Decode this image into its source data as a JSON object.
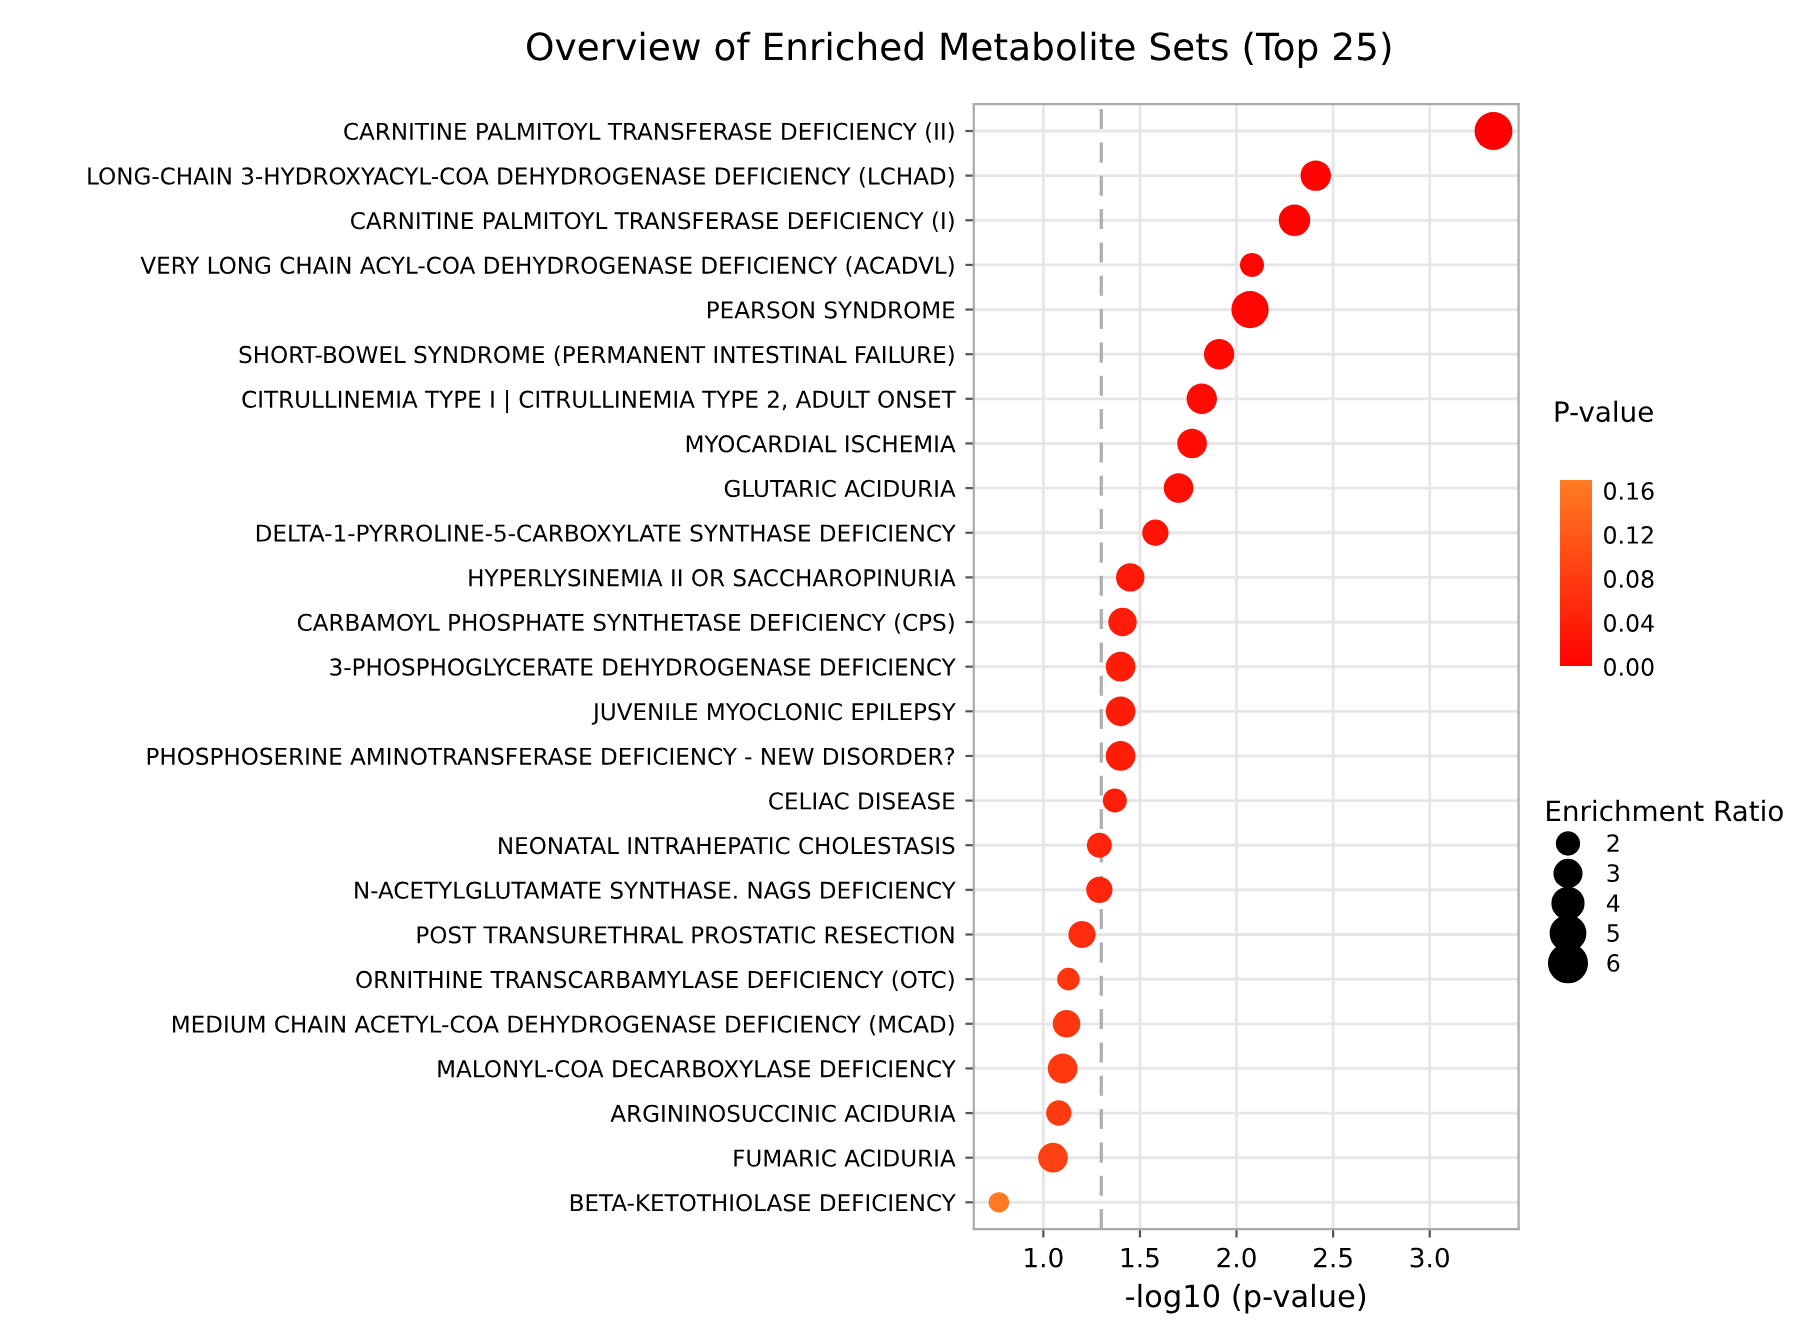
{
  "chart_data": {
    "type": "bubble",
    "title": "Overview of Enriched Metabolite Sets (Top 25)",
    "xlabel": "-log10 (p-value)",
    "clabel": "P-value",
    "legend_title": "Enrichment Ratio",
    "categories": [
      "CARNITINE PALMITOYL TRANSFERASE DEFICIENCY (II)",
      "LONG-CHAIN 3-HYDROXYACYL-COA DEHYDROGENASE DEFICIENCY (LCHAD)",
      "CARNITINE PALMITOYL TRANSFERASE DEFICIENCY (I)",
      "VERY LONG CHAIN ACYL-COA DEHYDROGENASE DEFICIENCY (ACADVL)",
      "PEARSON SYNDROME",
      "SHORT-BOWEL SYNDROME (PERMANENT INTESTINAL FAILURE)",
      "CITRULLINEMIA TYPE I | CITRULLINEMIA TYPE 2, ADULT ONSET",
      "MYOCARDIAL ISCHEMIA",
      "GLUTARIC ACIDURIA",
      "DELTA-1-PYRROLINE-5-CARBOXYLATE SYNTHASE DEFICIENCY",
      "HYPERLYSINEMIA II OR SACCHAROPINURIA",
      "CARBAMOYL PHOSPHATE SYNTHETASE DEFICIENCY (CPS)",
      "3-PHOSPHOGLYCERATE DEHYDROGENASE DEFICIENCY",
      "JUVENILE MYOCLONIC EPILEPSY",
      "PHOSPHOSERINE AMINOTRANSFERASE DEFICIENCY - NEW DISORDER?",
      "CELIAC DISEASE",
      "NEONATAL INTRAHEPATIC CHOLESTASIS",
      "N-ACETYLGLUTAMATE SYNTHASE. NAGS DEFICIENCY",
      "POST TRANSURETHRAL PROSTATIC RESECTION",
      "ORNITHINE TRANSCARBAMYLASE DEFICIENCY (OTC)",
      "MEDIUM CHAIN ACETYL-COA DEHYDROGENASE DEFICIENCY (MCAD)",
      "MALONYL-COA DECARBOXYLASE DEFICIENCY",
      "ARGININOSUCCINIC ACIDURIA",
      "FUMARIC ACIDURIA",
      "BETA-KETOTHIOLASE DEFICIENCY"
    ],
    "orientation": "horizontal",
    "values": [
      3.33,
      2.41,
      2.3,
      2.08,
      2.07,
      1.91,
      1.82,
      1.77,
      1.7,
      1.58,
      1.45,
      1.41,
      1.4,
      1.4,
      1.4,
      1.37,
      1.29,
      1.29,
      1.2,
      1.13,
      1.12,
      1.1,
      1.08,
      1.05,
      0.77
    ],
    "sizes": [
      6.2,
      4,
      4.3,
      2.5,
      6,
      4,
      4,
      3.8,
      3.8,
      3,
      3.5,
      3.5,
      3.8,
      3.8,
      3.8,
      2.5,
      2.7,
      3,
      3.2,
      2.2,
      3.3,
      3.8,
      2.8,
      3.8,
      1.8
    ],
    "cvalues": [
      0.0005,
      0.004,
      0.005,
      0.008,
      0.009,
      0.012,
      0.015,
      0.017,
      0.02,
      0.026,
      0.035,
      0.039,
      0.04,
      0.04,
      0.04,
      0.043,
      0.051,
      0.051,
      0.063,
      0.074,
      0.076,
      0.079,
      0.083,
      0.089,
      0.17
    ],
    "size_legend": [
      2,
      3,
      4,
      5,
      6
    ],
    "clim": [
      0,
      0.17
    ],
    "cticks": [
      {
        "value": 0,
        "label": "0.00"
      },
      {
        "value": 0.04,
        "label": "0.04"
      },
      {
        "value": 0.08,
        "label": "0.08"
      },
      {
        "value": 0.12,
        "label": "0.12"
      },
      {
        "value": 0.16,
        "label": "0.16"
      }
    ],
    "xlim": [
      0.64,
      3.46
    ],
    "xticks": [
      {
        "value": 1.0,
        "label": "1.0"
      },
      {
        "value": 1.5,
        "label": "1.5"
      },
      {
        "value": 2.0,
        "label": "2.0"
      },
      {
        "value": 2.5,
        "label": "2.5"
      },
      {
        "value": 3.0,
        "label": "3.0"
      }
    ],
    "ref_lines": [
      {
        "axis": "x",
        "value": 1.3,
        "color": "#b0b0b0",
        "line_style": "dashed"
      }
    ],
    "grid": true
  }
}
